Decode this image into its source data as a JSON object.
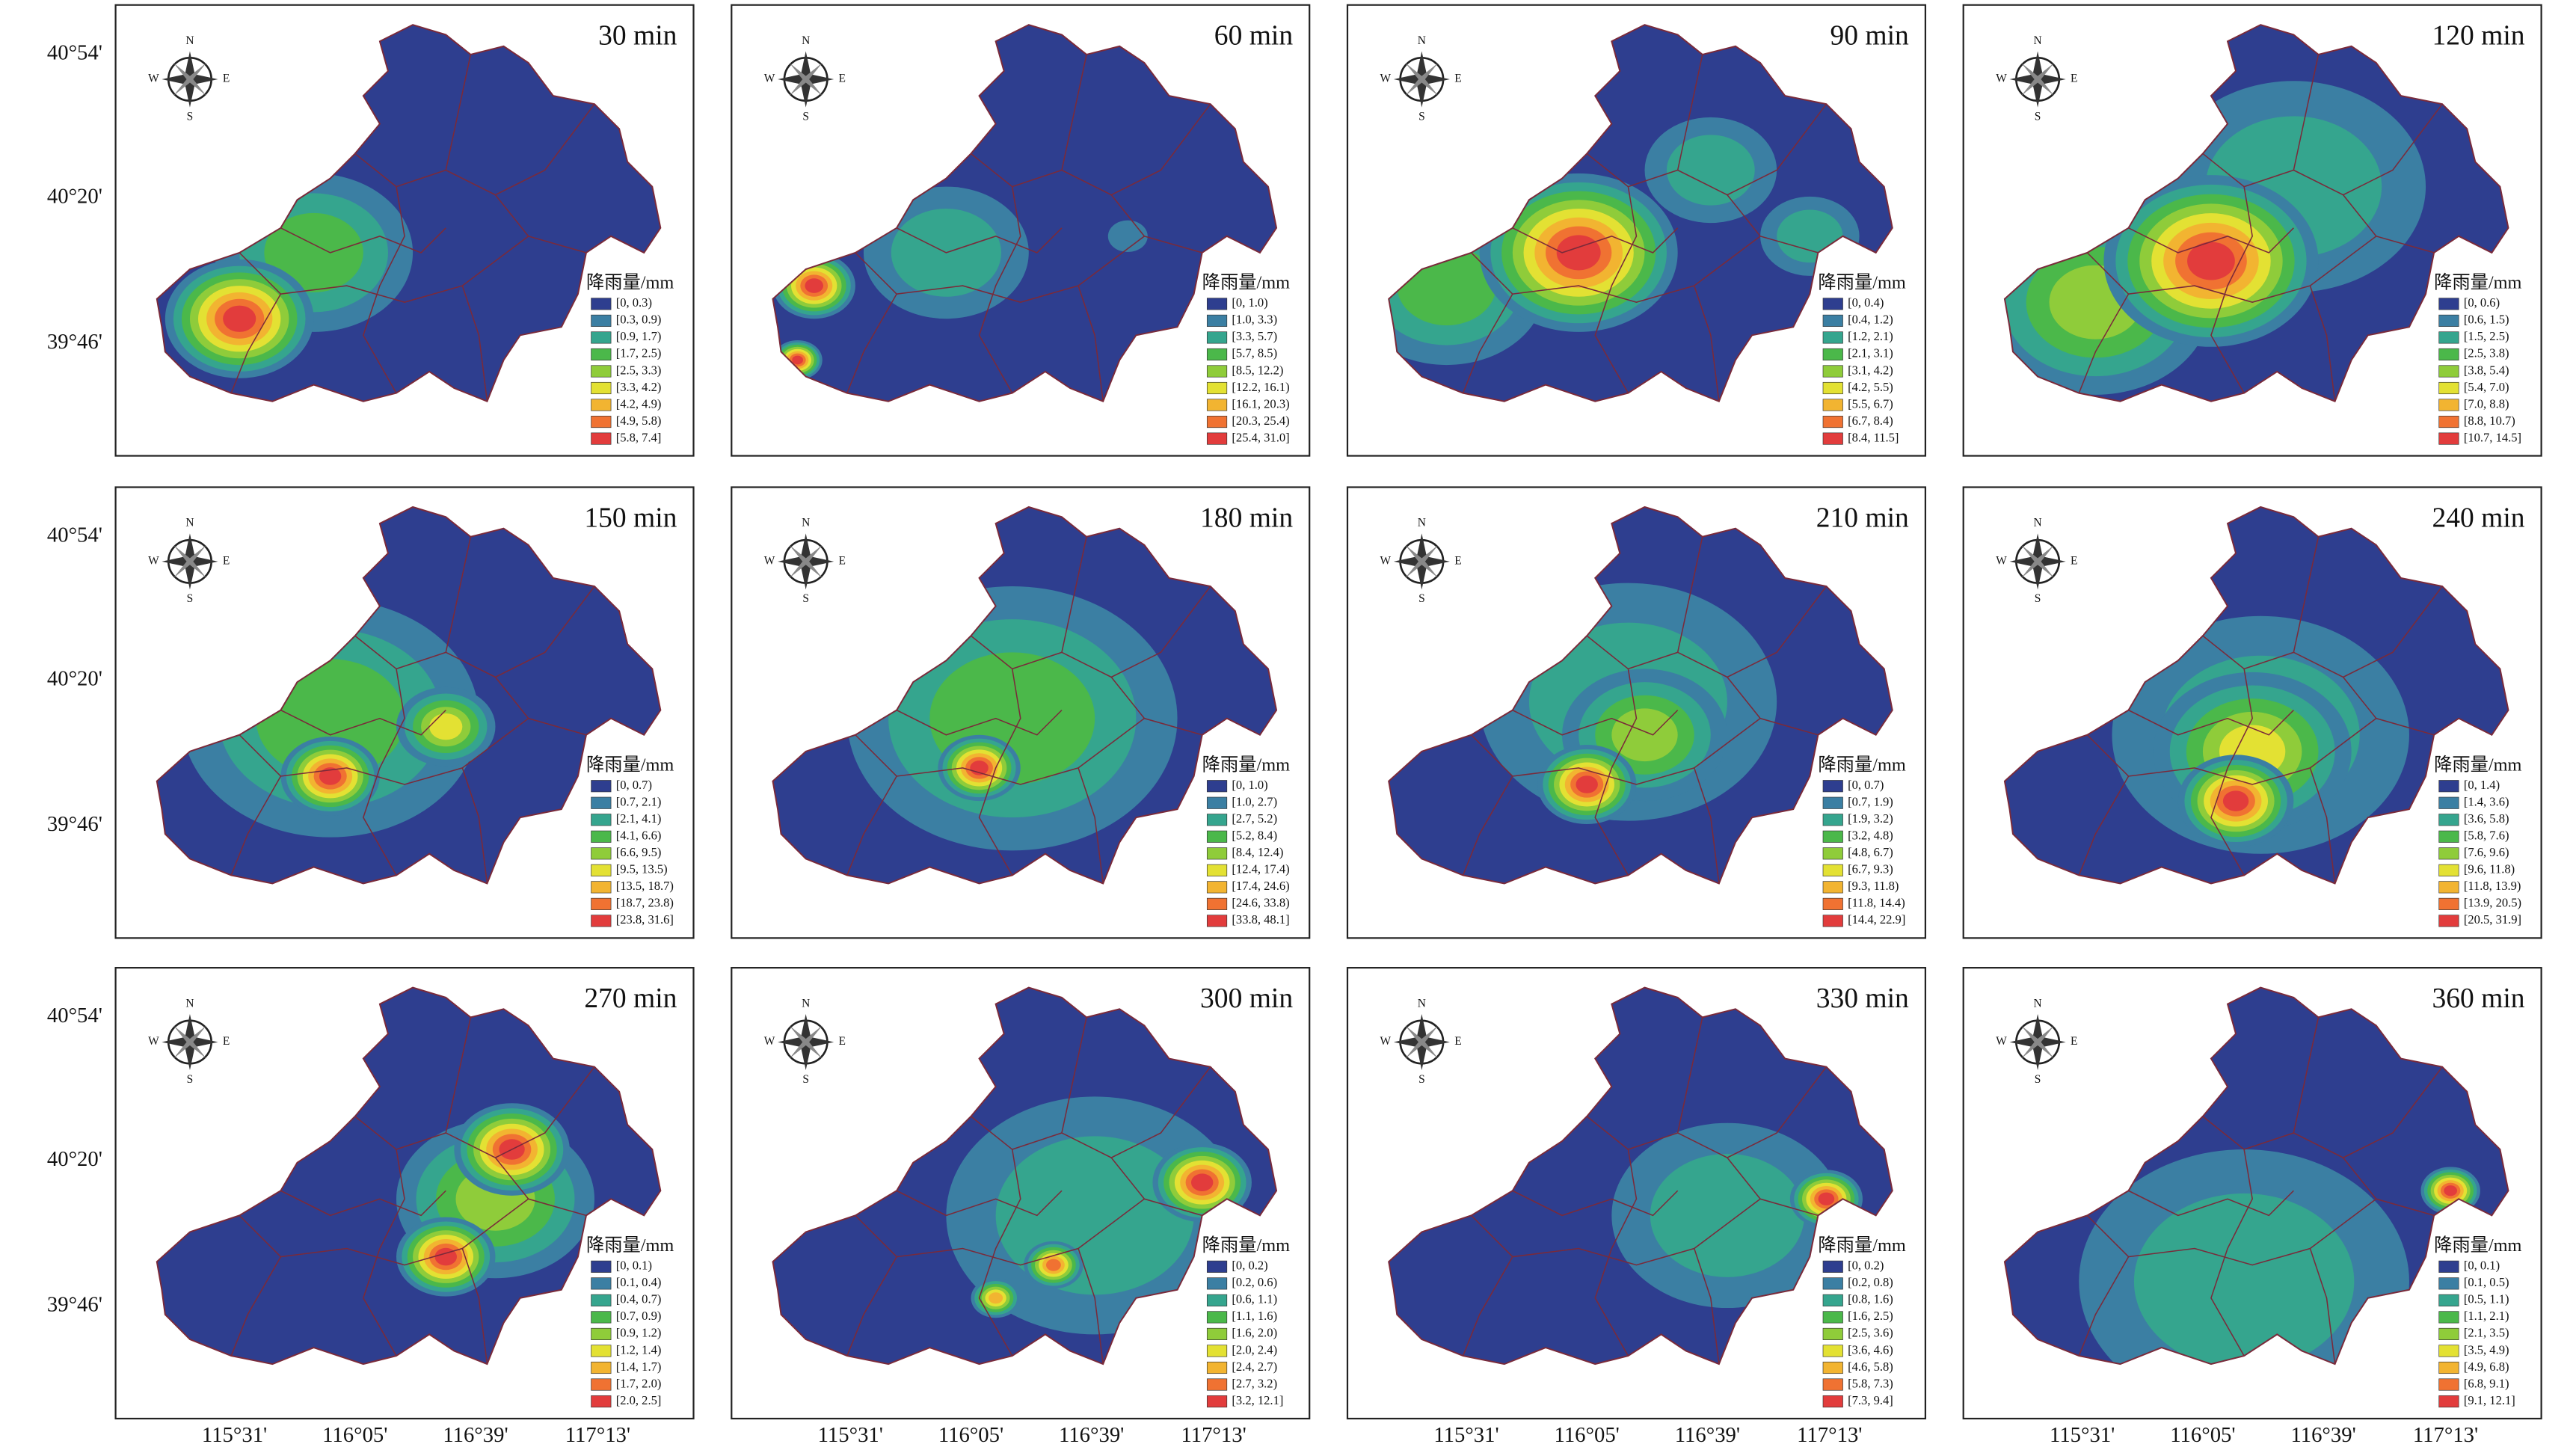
{
  "axes": {
    "y_labels": [
      "40°54'",
      "40°20'",
      "39°46'"
    ],
    "x_labels": [
      "115°31'",
      "116°05'",
      "116°39'",
      "117°13'"
    ]
  },
  "compass": {
    "n": "N",
    "s": "S",
    "w": "W",
    "e": "E"
  },
  "legend_title": "降雨量/mm",
  "legend_colors": [
    "#2e3e8f",
    "#3b7fa3",
    "#35a58e",
    "#4bb84a",
    "#8fcc3a",
    "#e3e133",
    "#f2b431",
    "#f07232",
    "#e23c3c"
  ],
  "panels": [
    {
      "title": "30 min",
      "legend": [
        "[0, 0.3)",
        "[0.3, 0.9)",
        "[0.9, 1.7)",
        "[1.7, 2.5)",
        "[2.5, 3.3)",
        "[3.3, 4.2)",
        "[4.2, 4.9)",
        "[4.9, 5.8)",
        "[5.8, 7.4]"
      ]
    },
    {
      "title": "60 min",
      "legend": [
        "[0, 1.0)",
        "[1.0, 3.3)",
        "[3.3, 5.7)",
        "[5.7, 8.5)",
        "[8.5, 12.2)",
        "[12.2, 16.1)",
        "[16.1, 20.3)",
        "[20.3, 25.4)",
        "[25.4, 31.0]"
      ]
    },
    {
      "title": "90 min",
      "legend": [
        "[0, 0.4)",
        "[0.4, 1.2)",
        "[1.2, 2.1)",
        "[2.1, 3.1)",
        "[3.1, 4.2)",
        "[4.2, 5.5)",
        "[5.5, 6.7)",
        "[6.7, 8.4)",
        "[8.4, 11.5]"
      ]
    },
    {
      "title": "120 min",
      "legend": [
        "[0, 0.6)",
        "[0.6, 1.5)",
        "[1.5, 2.5)",
        "[2.5, 3.8)",
        "[3.8, 5.4)",
        "[5.4, 7.0)",
        "[7.0, 8.8)",
        "[8.8, 10.7)",
        "[10.7, 14.5]"
      ]
    },
    {
      "title": "150 min",
      "legend": [
        "[0, 0.7)",
        "[0.7, 2.1)",
        "[2.1, 4.1)",
        "[4.1, 6.6)",
        "[6.6, 9.5)",
        "[9.5, 13.5)",
        "[13.5, 18.7)",
        "[18.7, 23.8)",
        "[23.8, 31.6]"
      ]
    },
    {
      "title": "180 min",
      "legend": [
        "[0, 1.0)",
        "[1.0, 2.7)",
        "[2.7, 5.2)",
        "[5.2, 8.4)",
        "[8.4, 12.4)",
        "[12.4, 17.4)",
        "[17.4, 24.6)",
        "[24.6, 33.8)",
        "[33.8, 48.1]"
      ]
    },
    {
      "title": "210 min",
      "legend": [
        "[0, 0.7)",
        "[0.7, 1.9)",
        "[1.9, 3.2)",
        "[3.2, 4.8)",
        "[4.8, 6.7)",
        "[6.7, 9.3)",
        "[9.3, 11.8)",
        "[11.8, 14.4)",
        "[14.4, 22.9]"
      ]
    },
    {
      "title": "240 min",
      "legend": [
        "[0, 1.4)",
        "[1.4, 3.6)",
        "[3.6, 5.8)",
        "[5.8, 7.6)",
        "[7.6, 9.6)",
        "[9.6, 11.8)",
        "[11.8, 13.9)",
        "[13.9, 20.5)",
        "[20.5, 31.9]"
      ]
    },
    {
      "title": "270 min",
      "legend": [
        "[0, 0.1)",
        "[0.1, 0.4)",
        "[0.4, 0.7)",
        "[0.7, 0.9)",
        "[0.9, 1.2)",
        "[1.2, 1.4)",
        "[1.4, 1.7)",
        "[1.7, 2.0)",
        "[2.0, 2.5]"
      ]
    },
    {
      "title": "300 min",
      "legend": [
        "[0, 0.2)",
        "[0.2, 0.6)",
        "[0.6, 1.1)",
        "[1.1, 1.6)",
        "[1.6, 2.0)",
        "[2.0, 2.4)",
        "[2.4, 2.7)",
        "[2.7, 3.2)",
        "[3.2, 12.1]"
      ]
    },
    {
      "title": "330 min",
      "legend": [
        "[0, 0.2)",
        "[0.2, 0.8)",
        "[0.8, 1.6)",
        "[1.6, 2.5)",
        "[2.5, 3.6)",
        "[3.6, 4.6)",
        "[4.6, 5.8)",
        "[5.8, 7.3)",
        "[7.3, 9.4]"
      ]
    },
    {
      "title": "360 min",
      "legend": [
        "[0, 0.1)",
        "[0.1, 0.5)",
        "[0.5, 1.1)",
        "[1.1, 2.1)",
        "[2.1, 3.5)",
        "[3.5, 4.9)",
        "[4.9, 6.8)",
        "[6.8, 9.1)",
        "[9.1, 12.1]"
      ]
    }
  ]
}
